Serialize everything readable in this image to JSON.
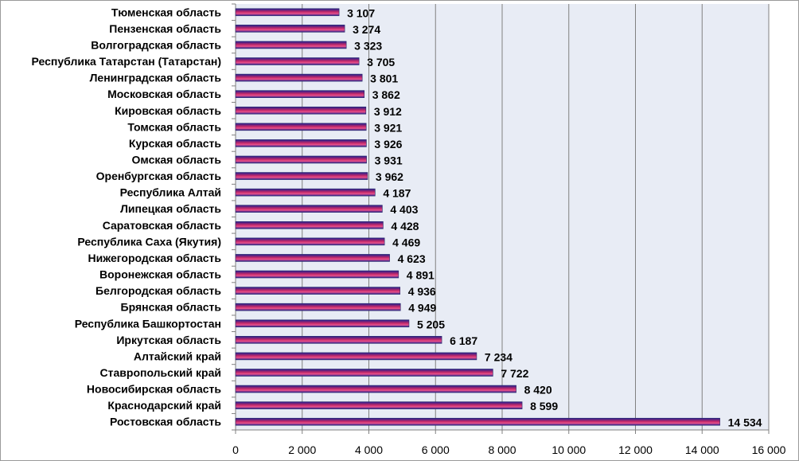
{
  "chart_data": {
    "type": "bar",
    "orientation": "horizontal",
    "categories": [
      "Тюменская область",
      "Пензенская область",
      "Волгоградская область",
      "Республика Татарстан (Татарстан)",
      "Ленинградская область",
      "Московская область",
      "Кировская область",
      "Томская область",
      "Курская область",
      "Омская область",
      "Оренбургская область",
      "Республика Алтай",
      "Липецкая область",
      "Саратовская область",
      "Республика Саха (Якутия)",
      "Нижегородская область",
      "Воронежская область",
      "Белгородская область",
      "Брянская область",
      "Республика Башкортостан",
      "Иркутская область",
      "Алтайский край",
      "Ставропольский край",
      "Новосибирская область",
      "Краснодарский край",
      "Ростовская область"
    ],
    "values": [
      3107,
      3274,
      3323,
      3705,
      3801,
      3862,
      3912,
      3921,
      3926,
      3931,
      3962,
      4187,
      4403,
      4428,
      4469,
      4623,
      4891,
      4936,
      4949,
      5205,
      6187,
      7234,
      7722,
      8420,
      8599,
      14534
    ],
    "value_labels": [
      "3 107",
      "3 274",
      "3 323",
      "3 705",
      "3 801",
      "3 862",
      "3 912",
      "3 921",
      "3 926",
      "3 931",
      "3 962",
      "4 187",
      "4 403",
      "4 428",
      "4 469",
      "4 623",
      "4 891",
      "4 936",
      "4 949",
      "5 205",
      "6 187",
      "7 234",
      "7 722",
      "8 420",
      "8 599",
      "14 534"
    ],
    "xlim": [
      0,
      16000
    ],
    "x_ticks": [
      0,
      2000,
      4000,
      6000,
      8000,
      10000,
      12000,
      14000,
      16000
    ],
    "x_tick_labels": [
      "0",
      "2 000",
      "4 000",
      "6 000",
      "8 000",
      "10 000",
      "12 000",
      "14 000",
      "16 000"
    ],
    "grid": true,
    "title": "",
    "xlabel": "",
    "ylabel": "",
    "colors": {
      "plot_background": "#E8ECF5",
      "gridline": "#808080",
      "bar_dark": "#1F1F8F",
      "bar_mid": "#C0286A",
      "bar_light": "#E8508A",
      "bar_outline": "#2A2A6A"
    }
  }
}
